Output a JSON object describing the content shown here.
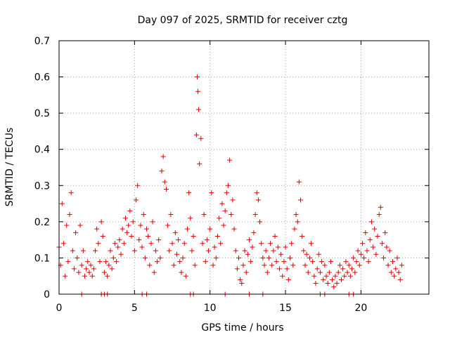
{
  "chart_data": {
    "type": "scatter",
    "title": "Day 097 of 2025, SRMTID for receiver cztg",
    "xlabel": "GPS time / hours",
    "ylabel": "SRMTID / TECUs",
    "xlim": [
      0,
      24.5
    ],
    "ylim": [
      0,
      0.7
    ],
    "x_ticks": [
      0,
      5,
      10,
      15,
      20
    ],
    "x_tick_labels": [
      "0",
      "5",
      "10",
      "15",
      "20"
    ],
    "y_ticks": [
      0,
      0.1,
      0.2,
      0.3,
      0.4,
      0.5,
      0.6,
      0.7
    ],
    "y_tick_labels": [
      "0",
      "0.1",
      "0.2",
      "0.3",
      "0.4",
      "0.5",
      "0.6",
      "0.7"
    ],
    "grid": true,
    "marker": "plus",
    "marker_color": "#e00000",
    "series": [
      {
        "name": "SRMTID",
        "points": [
          [
            0.0,
            0.13
          ],
          [
            0.1,
            0.08
          ],
          [
            0.2,
            0.25
          ],
          [
            0.3,
            0.14
          ],
          [
            0.4,
            0.05
          ],
          [
            0.5,
            0.19
          ],
          [
            0.6,
            0.09
          ],
          [
            0.7,
            0.22
          ],
          [
            0.8,
            0.28
          ],
          [
            0.9,
            0.12
          ],
          [
            1.0,
            0.07
          ],
          [
            1.1,
            0.17
          ],
          [
            1.2,
            0.1
          ],
          [
            1.3,
            0.06
          ],
          [
            1.4,
            0.19
          ],
          [
            1.5,
            0.08
          ],
          [
            1.6,
            0.12
          ],
          [
            1.7,
            0.05
          ],
          [
            1.8,
            0.07
          ],
          [
            1.9,
            0.09
          ],
          [
            2.0,
            0.06
          ],
          [
            2.1,
            0.08
          ],
          [
            2.2,
            0.05
          ],
          [
            2.3,
            0.07
          ],
          [
            2.4,
            0.12
          ],
          [
            2.5,
            0.18
          ],
          [
            2.6,
            0.14
          ],
          [
            2.7,
            0.09
          ],
          [
            2.8,
            0.2
          ],
          [
            2.9,
            0.16
          ],
          [
            3.0,
            0.06
          ],
          [
            3.1,
            0.09
          ],
          [
            3.2,
            0.05
          ],
          [
            3.3,
            0.08
          ],
          [
            3.4,
            0.12
          ],
          [
            3.5,
            0.07
          ],
          [
            3.6,
            0.1
          ],
          [
            3.7,
            0.14
          ],
          [
            3.8,
            0.09
          ],
          [
            3.9,
            0.13
          ],
          [
            4.0,
            0.15
          ],
          [
            4.1,
            0.11
          ],
          [
            4.2,
            0.18
          ],
          [
            4.3,
            0.14
          ],
          [
            4.4,
            0.21
          ],
          [
            4.5,
            0.17
          ],
          [
            4.6,
            0.19
          ],
          [
            4.7,
            0.23
          ],
          [
            4.8,
            0.16
          ],
          [
            4.9,
            0.2
          ],
          [
            5.0,
            0.12
          ],
          [
            5.1,
            0.26
          ],
          [
            5.2,
            0.3
          ],
          [
            5.3,
            0.15
          ],
          [
            5.4,
            0.19
          ],
          [
            5.5,
            0.13
          ],
          [
            5.6,
            0.22
          ],
          [
            5.7,
            0.1
          ],
          [
            5.8,
            0.18
          ],
          [
            5.9,
            0.16
          ],
          [
            6.0,
            0.08
          ],
          [
            6.1,
            0.14
          ],
          [
            6.2,
            0.2
          ],
          [
            6.3,
            0.06
          ],
          [
            6.4,
            0.12
          ],
          [
            6.5,
            0.09
          ],
          [
            6.6,
            0.15
          ],
          [
            6.7,
            0.1
          ],
          [
            6.8,
            0.34
          ],
          [
            6.9,
            0.38
          ],
          [
            7.0,
            0.31
          ],
          [
            7.1,
            0.29
          ],
          [
            7.2,
            0.19
          ],
          [
            7.3,
            0.12
          ],
          [
            7.4,
            0.22
          ],
          [
            7.5,
            0.14
          ],
          [
            7.6,
            0.08
          ],
          [
            7.7,
            0.17
          ],
          [
            7.8,
            0.11
          ],
          [
            7.9,
            0.15
          ],
          [
            8.0,
            0.09
          ],
          [
            8.1,
            0.06
          ],
          [
            8.2,
            0.1
          ],
          [
            8.3,
            0.14
          ],
          [
            8.4,
            0.05
          ],
          [
            8.5,
            0.18
          ],
          [
            8.6,
            0.28
          ],
          [
            8.7,
            0.21
          ],
          [
            8.8,
            0.12
          ],
          [
            8.9,
            0.16
          ],
          [
            9.0,
            0.08
          ],
          [
            9.1,
            0.44
          ],
          [
            9.15,
            0.6
          ],
          [
            9.2,
            0.56
          ],
          [
            9.25,
            0.51
          ],
          [
            9.3,
            0.36
          ],
          [
            9.4,
            0.43
          ],
          [
            9.5,
            0.14
          ],
          [
            9.6,
            0.22
          ],
          [
            9.7,
            0.09
          ],
          [
            9.8,
            0.15
          ],
          [
            9.9,
            0.12
          ],
          [
            10.0,
            0.18
          ],
          [
            10.1,
            0.28
          ],
          [
            10.2,
            0.08
          ],
          [
            10.3,
            0.13
          ],
          [
            10.4,
            0.1
          ],
          [
            10.5,
            0.16
          ],
          [
            10.6,
            0.21
          ],
          [
            10.7,
            0.14
          ],
          [
            10.8,
            0.25
          ],
          [
            10.9,
            0.19
          ],
          [
            11.0,
            0.23
          ],
          [
            11.1,
            0.28
          ],
          [
            11.2,
            0.3
          ],
          [
            11.3,
            0.37
          ],
          [
            11.4,
            0.22
          ],
          [
            11.5,
            0.26
          ],
          [
            11.6,
            0.18
          ],
          [
            11.7,
            0.12
          ],
          [
            11.8,
            0.07
          ],
          [
            11.9,
            0.1
          ],
          [
            12.0,
            0.04
          ],
          [
            12.1,
            0.03
          ],
          [
            12.2,
            0.08
          ],
          [
            12.3,
            0.12
          ],
          [
            12.4,
            0.06
          ],
          [
            12.5,
            0.11
          ],
          [
            12.6,
            0.15
          ],
          [
            12.7,
            0.09
          ],
          [
            12.8,
            0.13
          ],
          [
            12.9,
            0.17
          ],
          [
            13.0,
            0.22
          ],
          [
            13.1,
            0.28
          ],
          [
            13.2,
            0.26
          ],
          [
            13.3,
            0.2
          ],
          [
            13.4,
            0.14
          ],
          [
            13.5,
            0.1
          ],
          [
            13.6,
            0.08
          ],
          [
            13.7,
            0.12
          ],
          [
            13.8,
            0.06
          ],
          [
            13.9,
            0.1
          ],
          [
            14.0,
            0.14
          ],
          [
            14.1,
            0.08
          ],
          [
            14.2,
            0.12
          ],
          [
            14.3,
            0.16
          ],
          [
            14.4,
            0.09
          ],
          [
            14.5,
            0.13
          ],
          [
            14.6,
            0.07
          ],
          [
            14.7,
            0.11
          ],
          [
            14.8,
            0.05
          ],
          [
            14.9,
            0.09
          ],
          [
            15.0,
            0.13
          ],
          [
            15.1,
            0.07
          ],
          [
            15.2,
            0.04
          ],
          [
            15.3,
            0.1
          ],
          [
            15.4,
            0.14
          ],
          [
            15.5,
            0.08
          ],
          [
            15.6,
            0.18
          ],
          [
            15.7,
            0.22
          ],
          [
            15.8,
            0.2
          ],
          [
            15.9,
            0.31
          ],
          [
            16.0,
            0.26
          ],
          [
            16.1,
            0.16
          ],
          [
            16.2,
            0.12
          ],
          [
            16.3,
            0.08
          ],
          [
            16.4,
            0.11
          ],
          [
            16.5,
            0.06
          ],
          [
            16.6,
            0.1
          ],
          [
            16.7,
            0.14
          ],
          [
            16.8,
            0.09
          ],
          [
            16.9,
            0.05
          ],
          [
            17.0,
            0.03
          ],
          [
            17.1,
            0.07
          ],
          [
            17.2,
            0.11
          ],
          [
            17.3,
            0.06
          ],
          [
            17.4,
            0.09
          ],
          [
            17.5,
            0.04
          ],
          [
            17.6,
            0.08
          ],
          [
            17.7,
            0.05
          ],
          [
            17.8,
            0.03
          ],
          [
            17.9,
            0.06
          ],
          [
            18.0,
            0.09
          ],
          [
            18.1,
            0.04
          ],
          [
            18.2,
            0.02
          ],
          [
            18.3,
            0.05
          ],
          [
            18.4,
            0.03
          ],
          [
            18.5,
            0.06
          ],
          [
            18.6,
            0.08
          ],
          [
            18.7,
            0.04
          ],
          [
            18.8,
            0.07
          ],
          [
            18.9,
            0.05
          ],
          [
            19.0,
            0.09
          ],
          [
            19.1,
            0.06
          ],
          [
            19.2,
            0.08
          ],
          [
            19.3,
            0.05
          ],
          [
            19.4,
            0.07
          ],
          [
            19.5,
            0.1
          ],
          [
            19.6,
            0.06
          ],
          [
            19.7,
            0.09
          ],
          [
            19.8,
            0.12
          ],
          [
            19.9,
            0.08
          ],
          [
            20.0,
            0.11
          ],
          [
            20.1,
            0.14
          ],
          [
            20.2,
            0.1
          ],
          [
            20.3,
            0.17
          ],
          [
            20.4,
            0.12
          ],
          [
            20.5,
            0.09
          ],
          [
            20.6,
            0.15
          ],
          [
            20.7,
            0.2
          ],
          [
            20.8,
            0.13
          ],
          [
            20.9,
            0.18
          ],
          [
            21.0,
            0.11
          ],
          [
            21.1,
            0.16
          ],
          [
            21.2,
            0.22
          ],
          [
            21.3,
            0.24
          ],
          [
            21.4,
            0.14
          ],
          [
            21.5,
            0.1
          ],
          [
            21.6,
            0.17
          ],
          [
            21.7,
            0.13
          ],
          [
            21.8,
            0.08
          ],
          [
            21.9,
            0.12
          ],
          [
            22.0,
            0.06
          ],
          [
            22.1,
            0.09
          ],
          [
            22.2,
            0.05
          ],
          [
            22.3,
            0.07
          ],
          [
            22.4,
            0.1
          ],
          [
            22.5,
            0.06
          ],
          [
            22.6,
            0.04
          ],
          [
            22.7,
            0.08
          ],
          [
            1.5,
            0.0
          ],
          [
            2.8,
            0.0
          ],
          [
            3.0,
            0.0
          ],
          [
            3.2,
            0.0
          ],
          [
            5.5,
            0.0
          ],
          [
            5.8,
            0.0
          ],
          [
            8.7,
            0.0
          ],
          [
            8.9,
            0.0
          ],
          [
            11.0,
            0.0
          ],
          [
            12.6,
            0.0
          ],
          [
            13.5,
            0.0
          ],
          [
            17.3,
            0.0
          ],
          [
            17.6,
            0.0
          ],
          [
            19.2,
            0.0
          ],
          [
            19.5,
            0.0
          ]
        ]
      }
    ]
  }
}
